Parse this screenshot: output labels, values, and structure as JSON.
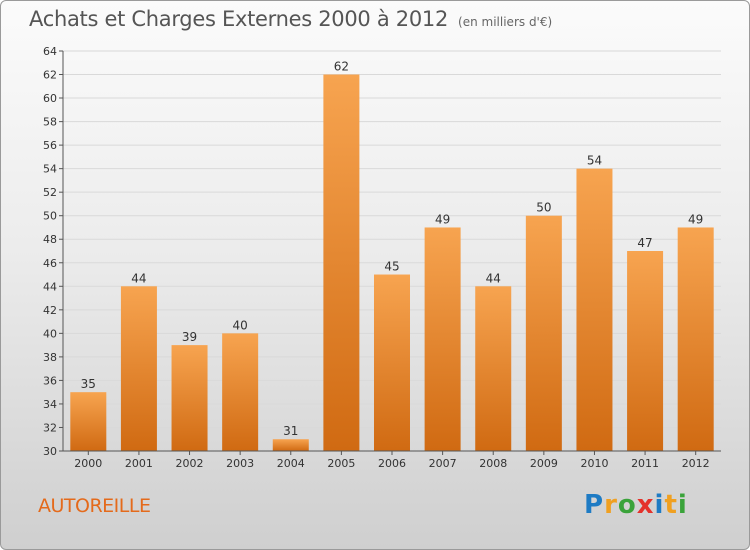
{
  "title": "Achats et Charges Externes 2000 à 2012",
  "subtitle": "(en milliers d'€)",
  "commune": "AUTOREILLE",
  "logo": {
    "text": "Proxiti",
    "letters": [
      {
        "ch": "P",
        "color": "#1e7bc4"
      },
      {
        "ch": "r",
        "color": "#f0a020"
      },
      {
        "ch": "o",
        "color": "#3aa33a"
      },
      {
        "ch": "x",
        "color": "#e4322b"
      },
      {
        "ch": "i",
        "color": "#1e7bc4"
      },
      {
        "ch": "t",
        "color": "#f0a020"
      },
      {
        "ch": "i",
        "color": "#3aa33a"
      }
    ]
  },
  "colors": {
    "bar_top": "#f7a450",
    "bar_bottom": "#d06a12",
    "title": "#555555",
    "commune": "#e46a1b"
  },
  "chart_data": {
    "type": "bar",
    "title": "Achats et Charges Externes 2000 à 2012",
    "subtitle": "(en milliers d'€)",
    "xlabel": "",
    "ylabel": "",
    "categories": [
      "2000",
      "2001",
      "2002",
      "2003",
      "2004",
      "2005",
      "2006",
      "2007",
      "2008",
      "2009",
      "2010",
      "2011",
      "2012"
    ],
    "values": [
      35,
      44,
      39,
      40,
      31,
      62,
      45,
      49,
      44,
      50,
      54,
      47,
      49
    ],
    "ylim": [
      30,
      64
    ],
    "yticks": [
      30,
      32,
      34,
      36,
      38,
      40,
      42,
      44,
      46,
      48,
      50,
      52,
      54,
      56,
      58,
      60,
      62,
      64
    ],
    "grid": true,
    "legend": "none"
  }
}
